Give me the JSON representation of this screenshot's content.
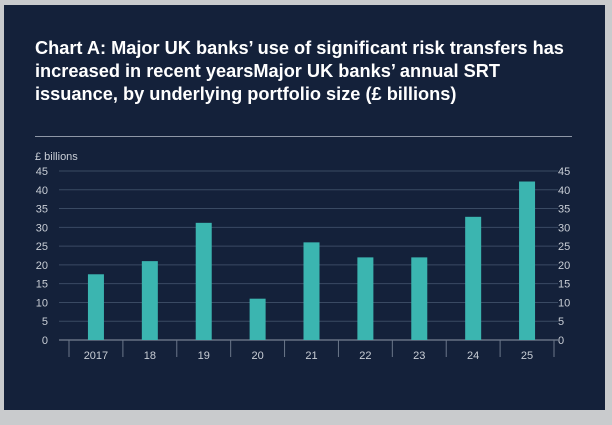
{
  "title": "Chart A: Major UK banks’ use of significant risk transfers has increased in recent yearsMajor UK banks’ annual SRT issuance, by underlying portfolio size (£ billions)",
  "chart_data": {
    "type": "bar",
    "unit_label": "£ billions",
    "categories": [
      "2017",
      "18",
      "19",
      "20",
      "21",
      "22",
      "23",
      "24",
      "25"
    ],
    "values": [
      17.5,
      21,
      31.2,
      11,
      26,
      22,
      22,
      32.8,
      42.2
    ],
    "ylim": [
      0,
      45
    ],
    "yticks": [
      0,
      5,
      10,
      15,
      20,
      25,
      30,
      35,
      40,
      45
    ],
    "grid": true,
    "bar_color": "#3bb5b0",
    "axes": "left-and-right"
  }
}
